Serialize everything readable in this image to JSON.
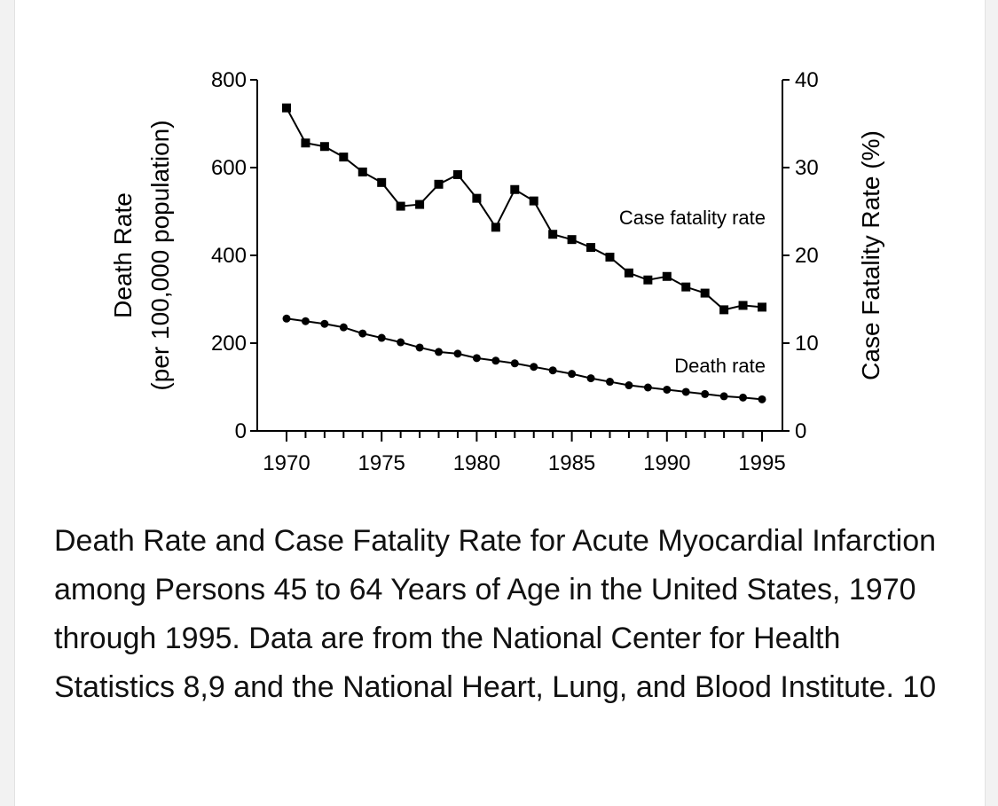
{
  "chart_data": {
    "type": "line",
    "x": [
      1970,
      1971,
      1972,
      1973,
      1974,
      1975,
      1976,
      1977,
      1978,
      1979,
      1980,
      1981,
      1982,
      1983,
      1984,
      1985,
      1986,
      1987,
      1988,
      1989,
      1990,
      1991,
      1992,
      1993,
      1994,
      1995
    ],
    "series": [
      {
        "name": "Case fatality rate",
        "axis": "right",
        "marker": "square",
        "values": [
          36.8,
          32.8,
          32.4,
          31.2,
          29.5,
          28.3,
          25.6,
          25.8,
          28.1,
          29.2,
          26.5,
          23.2,
          27.5,
          26.2,
          22.4,
          21.8,
          20.9,
          19.8,
          18.0,
          17.2,
          17.6,
          16.4,
          15.7,
          13.8,
          14.3,
          14.1
        ]
      },
      {
        "name": "Death rate",
        "axis": "left",
        "marker": "circle",
        "values": [
          256,
          250,
          244,
          236,
          222,
          212,
          202,
          190,
          180,
          176,
          166,
          160,
          154,
          146,
          138,
          130,
          120,
          112,
          104,
          99,
          94,
          89,
          84,
          79,
          76,
          72
        ]
      }
    ],
    "left_axis": {
      "label_line1": "Death Rate",
      "label_line2": "(per 100,000 population)",
      "ylim": [
        0,
        800
      ],
      "ticks": [
        "0",
        "200",
        "400",
        "600",
        "800"
      ],
      "tick_values": [
        0,
        200,
        400,
        600,
        800
      ]
    },
    "right_axis": {
      "label": "Case Fatality Rate (%)",
      "ylim": [
        0,
        40
      ],
      "ticks": [
        "0",
        "10",
        "20",
        "30",
        "40"
      ],
      "tick_values": [
        0,
        10,
        20,
        30,
        40
      ]
    },
    "x_axis": {
      "xlim": [
        1970,
        1995
      ],
      "ticks": [
        "1970",
        "1975",
        "1980",
        "1985",
        "1990",
        "1995"
      ],
      "tick_values": [
        1970,
        1975,
        1980,
        1985,
        1990,
        1995
      ],
      "minor_step": 1
    },
    "annotations": {
      "case_fatality": "Case fatality rate",
      "death_rate": "Death rate"
    }
  },
  "caption": "Death Rate and Case Fatality Rate for Acute Myocardial Infarction among Persons 45 to 64 Years of Age in the United States, 1970 through 1995. Data are from the National Center for Health Statistics 8,9 and the National Heart, Lung, and Blood Institute. 10"
}
